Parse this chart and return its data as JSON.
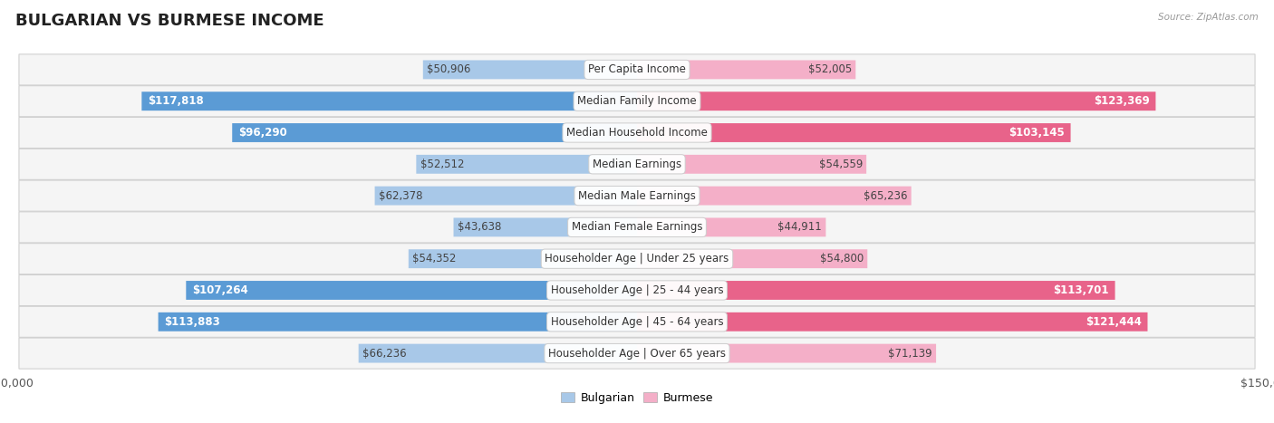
{
  "title": "BULGARIAN VS BURMESE INCOME",
  "source": "Source: ZipAtlas.com",
  "categories": [
    "Per Capita Income",
    "Median Family Income",
    "Median Household Income",
    "Median Earnings",
    "Median Male Earnings",
    "Median Female Earnings",
    "Householder Age | Under 25 years",
    "Householder Age | 25 - 44 years",
    "Householder Age | 45 - 64 years",
    "Householder Age | Over 65 years"
  ],
  "bulgarian_values": [
    50906,
    117818,
    96290,
    52512,
    62378,
    43638,
    54352,
    107264,
    113883,
    66236
  ],
  "burmese_values": [
    52005,
    123369,
    103145,
    54559,
    65236,
    44911,
    54800,
    113701,
    121444,
    71139
  ],
  "bulgarian_labels": [
    "$50,906",
    "$117,818",
    "$96,290",
    "$52,512",
    "$62,378",
    "$43,638",
    "$54,352",
    "$107,264",
    "$113,883",
    "$66,236"
  ],
  "burmese_labels": [
    "$52,005",
    "$123,369",
    "$103,145",
    "$54,559",
    "$65,236",
    "$44,911",
    "$54,800",
    "$113,701",
    "$121,444",
    "$71,139"
  ],
  "bulgarian_color_light": "#a8c8e8",
  "bulgarian_color_dark": "#5b9bd5",
  "burmese_color_light": "#f4afc8",
  "burmese_color_dark": "#e8638a",
  "max_value": 150000,
  "bar_height": 0.58,
  "background_color": "#ffffff",
  "row_bg_odd": "#f2f2f2",
  "row_bg_even": "#e8e8e8",
  "title_fontsize": 13,
  "label_fontsize": 8.5,
  "axis_label_fontsize": 9,
  "legend_fontsize": 9,
  "category_fontsize": 8.5,
  "large_threshold": 0.6
}
